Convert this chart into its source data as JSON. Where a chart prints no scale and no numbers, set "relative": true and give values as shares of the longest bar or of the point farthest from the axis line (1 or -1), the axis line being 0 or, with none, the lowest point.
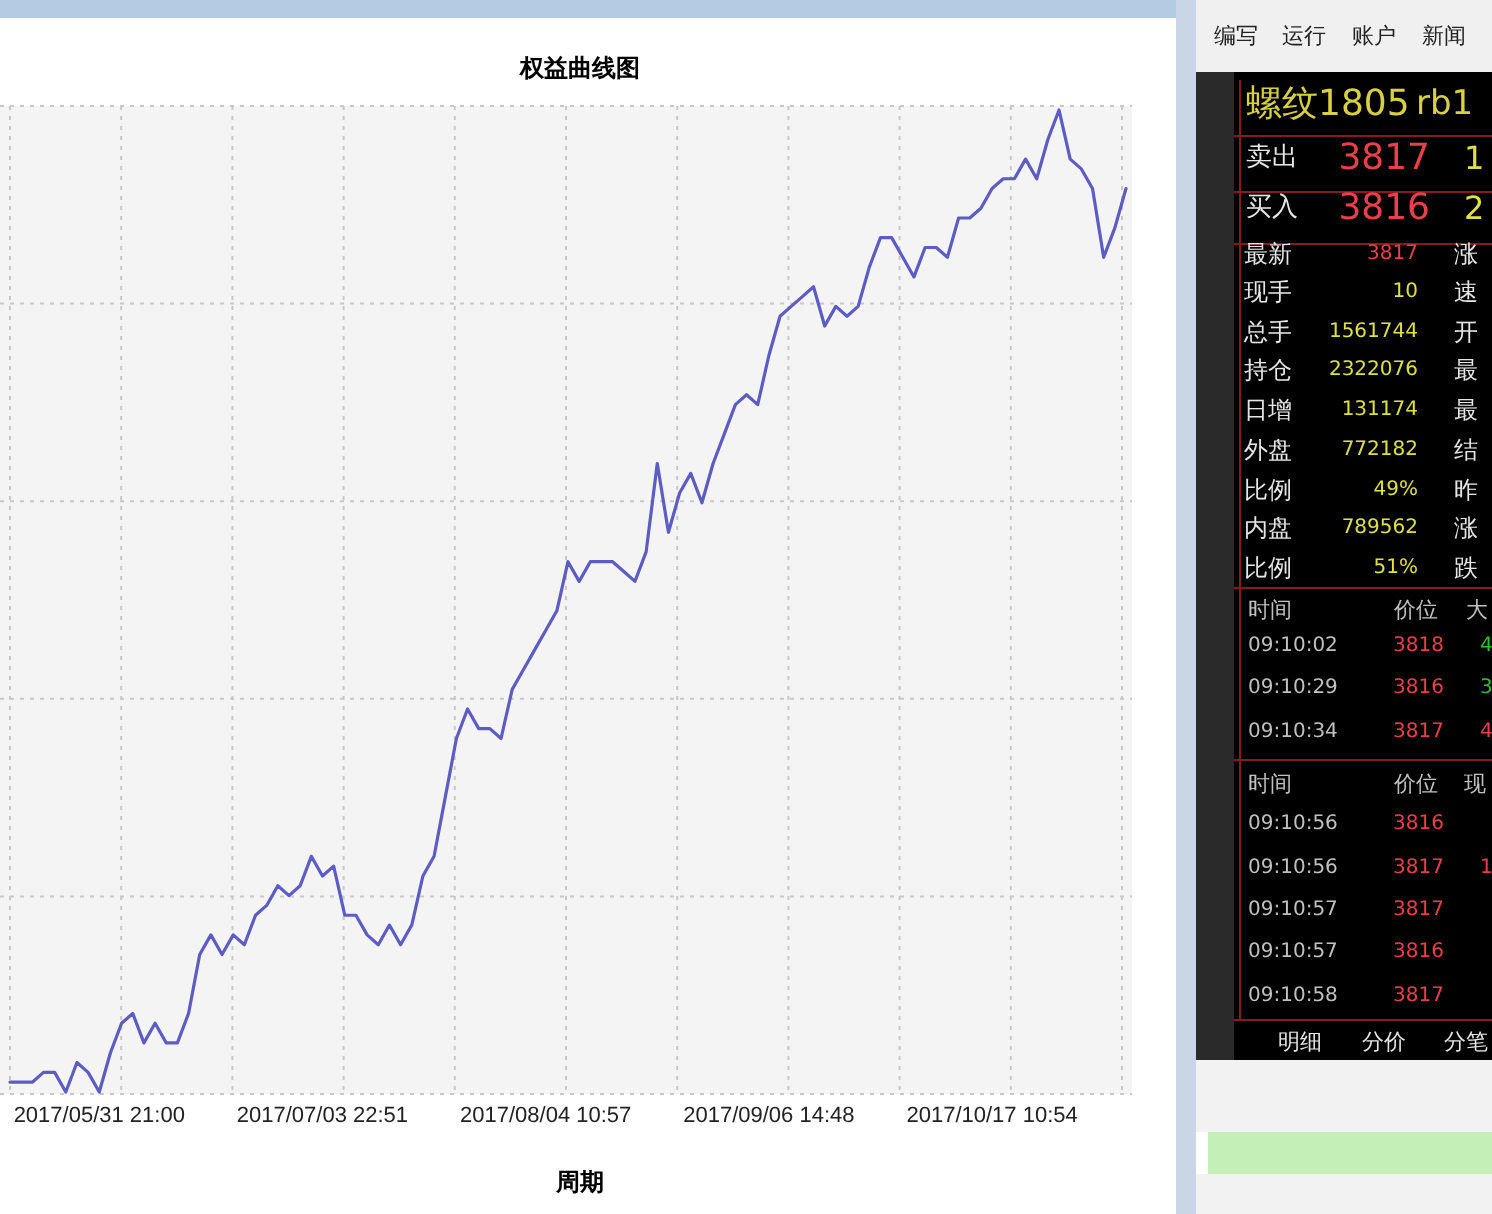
{
  "chart_data": [
    {
      "type": "line",
      "title": "权益曲线图",
      "xlabel": "周期",
      "relative": true,
      "grid": true,
      "color": "#5c5cc4",
      "categories": [
        null,
        null,
        null,
        null,
        null,
        null,
        null,
        null,
        "2017/05/31 21:00",
        null,
        null,
        null,
        null,
        null,
        null,
        null,
        null,
        null,
        null,
        null,
        null,
        null,
        null,
        null,
        null,
        null,
        null,
        null,
        "2017/07/03 22:51",
        null,
        null,
        null,
        null,
        null,
        null,
        null,
        null,
        null,
        null,
        null,
        null,
        null,
        null,
        null,
        null,
        null,
        null,
        null,
        "2017/08/04 10:57",
        null,
        null,
        null,
        null,
        null,
        null,
        null,
        null,
        null,
        null,
        null,
        null,
        null,
        null,
        null,
        null,
        null,
        null,
        null,
        "2017/09/06 14:48",
        null,
        null,
        null,
        null,
        null,
        null,
        null,
        null,
        null,
        null,
        null,
        null,
        null,
        null,
        null,
        null,
        null,
        null,
        null,
        "2017/10/17 10:54",
        null,
        null,
        null,
        null,
        null,
        null,
        null,
        null,
        null,
        null,
        null,
        null
      ],
      "values": [
        0.01,
        0.01,
        0.01,
        0.02,
        0.02,
        0.0,
        0.03,
        0.02,
        0.0,
        0.04,
        0.07,
        0.08,
        0.05,
        0.07,
        0.05,
        0.05,
        0.08,
        0.14,
        0.16,
        0.14,
        0.16,
        0.15,
        0.18,
        0.19,
        0.21,
        0.2,
        0.21,
        0.24,
        0.22,
        0.23,
        0.18,
        0.18,
        0.16,
        0.15,
        0.17,
        0.15,
        0.17,
        0.22,
        0.24,
        0.3,
        0.36,
        0.39,
        0.37,
        0.37,
        0.36,
        0.41,
        0.43,
        0.45,
        0.47,
        0.49,
        0.54,
        0.52,
        0.54,
        0.54,
        0.54,
        0.53,
        0.52,
        0.55,
        0.64,
        0.57,
        0.61,
        0.63,
        0.6,
        0.64,
        0.67,
        0.7,
        0.71,
        0.7,
        0.75,
        0.79,
        0.8,
        0.81,
        0.82,
        0.78,
        0.8,
        0.79,
        0.8,
        0.84,
        0.87,
        0.87,
        0.85,
        0.83,
        0.86,
        0.86,
        0.85,
        0.89,
        0.89,
        0.9,
        0.92,
        0.93,
        0.93,
        0.95,
        0.93,
        0.97,
        1.0,
        0.95,
        0.94,
        0.92,
        0.85,
        0.88,
        0.92
      ]
    },
    {
      "type": "other",
      "annotations": [
        "编写",
        "运行",
        "账户",
        "新闻",
        "螺纹1805",
        "rb1",
        "卖出",
        "3817",
        "1",
        "买入",
        "3816",
        "2",
        "最新",
        "现手",
        "总手",
        "持仓",
        "日增",
        "外盘",
        "比例",
        "内盘",
        "比例",
        "3817",
        "10",
        "1561744",
        "2322076",
        "131174",
        "772182",
        "49%",
        "789562",
        "51%",
        "涨",
        "速",
        "开",
        "最",
        "最",
        "结",
        "昨",
        "涨",
        "跌",
        "时间",
        "价位",
        "大",
        "09:10:02",
        "09:10:29",
        "09:10:34",
        "3818",
        "3816",
        "3817",
        "4",
        "3",
        "4",
        "时间",
        "价位",
        "现",
        "09:10:56",
        "09:10:56",
        "09:10:57",
        "09:10:57",
        "09:10:58",
        "3816",
        "3817",
        "3817",
        "3816",
        "3817",
        "1",
        "明细",
        "分价",
        "分笔"
      ]
    }
  ]
}
